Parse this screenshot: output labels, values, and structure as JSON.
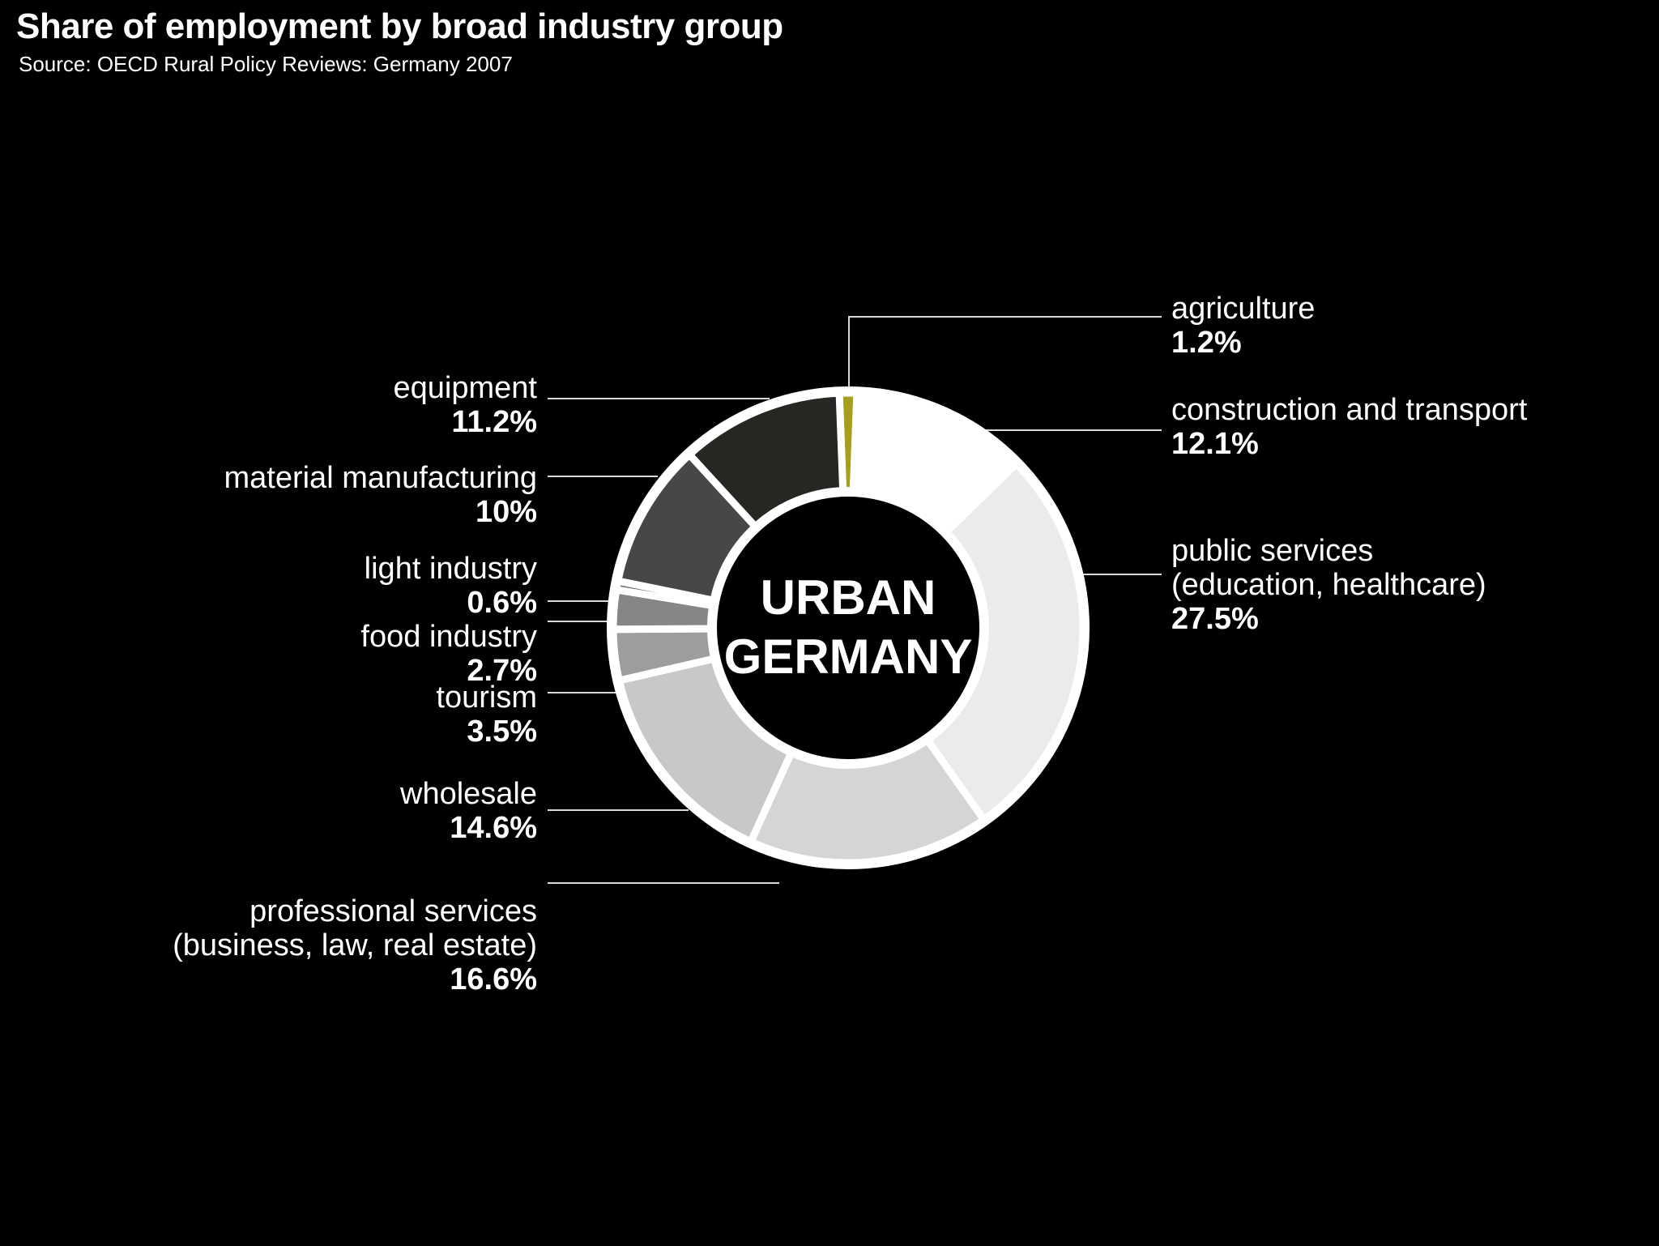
{
  "header": {
    "title": "Share of employment by broad industry group",
    "source": "Source: OECD Rural Policy Reviews: Germany 2007"
  },
  "center_label": {
    "line1": "URBAN",
    "line2": "GERMANY"
  },
  "chart_data": {
    "type": "pie",
    "subtype": "donut",
    "title": "Share of employment by broad industry group",
    "unit": "%",
    "total": 100,
    "orientation": "clockwise, first segment centered at 12 o'clock",
    "legend_position": "callout-labels",
    "background_color": "#000000",
    "separator_color": "#ffffff",
    "leader_line_color": "#d9d9d9",
    "segments": [
      {
        "id": "agriculture",
        "label": "agriculture",
        "value": 1.2,
        "value_label": "1.2%",
        "color": "#a89e1e",
        "label_side": "right"
      },
      {
        "id": "construction",
        "label": "construction and transport",
        "value": 12.1,
        "value_label": "12.1%",
        "color": "#ffffff",
        "label_side": "right"
      },
      {
        "id": "public",
        "label": "public services",
        "sub_label": "(education, healthcare)",
        "value": 27.5,
        "value_label": "27.5%",
        "color": "#ebebe9",
        "label_side": "right"
      },
      {
        "id": "professional",
        "label": "professional services",
        "sub_label": "(business, law, real estate)",
        "value": 16.6,
        "value_label": "16.6%",
        "color": "#d5d5d3",
        "label_side": "left"
      },
      {
        "id": "wholesale",
        "label": "wholesale",
        "value": 14.6,
        "value_label": "14.6%",
        "color": "#c8c8c6",
        "label_side": "left"
      },
      {
        "id": "tourism",
        "label": "tourism",
        "value": 3.5,
        "value_label": "3.5%",
        "color": "#9d9d9b",
        "label_side": "left"
      },
      {
        "id": "food",
        "label": "food industry",
        "value": 2.7,
        "value_label": "2.7%",
        "color": "#868684",
        "label_side": "left"
      },
      {
        "id": "light",
        "label": "light industry",
        "value": 0.6,
        "value_label": "0.6%",
        "color": "#6b6b69",
        "label_side": "left"
      },
      {
        "id": "material",
        "label": "material manufacturing",
        "value": 10,
        "value_label": "10%",
        "color": "#474745",
        "label_side": "left"
      },
      {
        "id": "equipment",
        "label": "equipment",
        "value": 11.2,
        "value_label": "11.2%",
        "color": "#262623",
        "label_side": "left"
      }
    ]
  }
}
